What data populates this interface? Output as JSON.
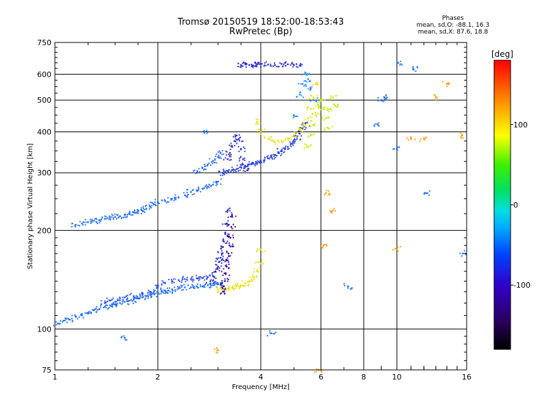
{
  "header": {
    "title": "Tromsø 20150519 18:52:00-18:53:43",
    "subtitle": "RwPretec (Bp)",
    "stats_heading": "Phases",
    "stats_o": "mean, sd,O: -88.1, 16.3",
    "stats_x": "mean, sd,X: 87.6, 18.8"
  },
  "colors": {
    "background": "#ffffff",
    "grid": "#000000",
    "purple": "#3a0090",
    "blue": "#1040e0",
    "light_blue": "#1a8cff",
    "yellow": "#f0e000",
    "yellow_green": "#b0f000",
    "orange": "#ff9a00"
  },
  "chart_data": {
    "type": "scatter",
    "title": "Tromsø 20150519 18:52:00-18:53:43",
    "subtitle": "RwPretec (Bp)",
    "xlabel": "Frequency [MHz]",
    "ylabel": "Stationary phase Virtual Height [km]",
    "x_scale": "log",
    "y_scale": "log",
    "xlim": [
      1,
      16
    ],
    "ylim": [
      75,
      750
    ],
    "x_ticks": [
      1,
      2,
      4,
      6,
      8,
      10,
      16
    ],
    "x_tick_labels": [
      "1",
      "2",
      "4",
      "6",
      "8",
      "10",
      "16"
    ],
    "y_ticks": [
      75,
      100,
      200,
      300,
      400,
      500,
      600,
      750
    ],
    "y_tick_labels": [
      "75",
      "100",
      "200",
      "300",
      "400",
      "500",
      "600",
      "750"
    ],
    "grid": true,
    "colorbar": {
      "label": "[deg]",
      "range": [
        -180,
        180
      ],
      "ticks": [
        -100,
        0,
        100
      ],
      "tick_labels": [
        "-100",
        "0",
        "100"
      ],
      "placement": "right"
    },
    "series": [
      {
        "color": "#1a6cf0",
        "x": [
          1.02,
          1.06,
          1.1,
          1.15,
          1.2,
          1.25,
          1.3,
          1.35,
          1.4,
          1.45,
          1.5,
          1.55,
          1.6,
          1.65,
          1.7,
          1.75,
          1.8,
          1.85,
          1.9,
          1.95,
          2.0,
          2.05,
          2.1,
          2.15,
          2.2,
          2.3,
          2.4,
          2.5,
          2.6,
          2.7,
          2.8,
          2.9,
          3.0,
          3.05
        ],
        "y": [
          104,
          106,
          107,
          109,
          110,
          112,
          114,
          115,
          117,
          118,
          119,
          120,
          121,
          122,
          123,
          124,
          125,
          126,
          127,
          128,
          129,
          130,
          131,
          131,
          132,
          133,
          134,
          134,
          135,
          135,
          136,
          136,
          137,
          138
        ]
      },
      {
        "color": "#2a50e8",
        "x": [
          1.4,
          1.45,
          1.5,
          1.55,
          1.6,
          1.7,
          1.8,
          1.9,
          2.0,
          2.1,
          2.2,
          2.3,
          2.4,
          2.5,
          2.6,
          2.7,
          2.8
        ],
        "y": [
          120,
          122,
          121,
          124,
          125,
          126,
          128,
          130,
          134,
          138,
          140,
          141,
          142,
          142,
          143,
          143,
          144
        ]
      },
      {
        "color": "#1a6cf0",
        "x": [
          1.15,
          1.2,
          1.25,
          1.3,
          1.35,
          1.4,
          1.45,
          1.5,
          1.55,
          1.6,
          1.65,
          1.7,
          1.75,
          1.8,
          1.85,
          1.9,
          1.95,
          2.0,
          2.1,
          2.2,
          2.3,
          2.4,
          2.5,
          2.6,
          2.7,
          2.8,
          2.9,
          3.0
        ],
        "y": [
          208,
          210,
          212,
          214,
          215,
          217,
          218,
          220,
          221,
          223,
          225,
          227,
          229,
          230,
          233,
          236,
          240,
          244,
          246,
          250,
          252,
          256,
          262,
          265,
          268,
          272,
          276,
          282
        ]
      },
      {
        "color": "#2060f0",
        "x": [
          2.6,
          2.7,
          2.8,
          2.9,
          3.0,
          3.05
        ],
        "y": [
          300,
          310,
          318,
          326,
          335,
          345
        ]
      },
      {
        "color": "#2a40d8",
        "x": [
          3.1,
          3.15,
          3.2,
          3.3,
          3.4,
          3.5,
          3.6,
          3.7,
          3.8,
          3.9,
          4.0,
          4.1,
          4.2,
          4.3,
          4.4,
          4.5,
          4.6,
          4.7,
          4.8,
          4.9,
          5.0,
          5.1,
          5.2,
          5.3,
          5.4
        ],
        "y": [
          300,
          302,
          304,
          306,
          308,
          312,
          315,
          318,
          320,
          322,
          325,
          328,
          332,
          336,
          340,
          345,
          350,
          355,
          360,
          368,
          375,
          385,
          395,
          410,
          425
        ]
      },
      {
        "color": "#2a2ac8",
        "x": [
          3.2,
          3.25,
          3.3,
          3.35,
          3.4,
          3.45,
          3.5,
          3.55,
          3.6,
          3.65
        ],
        "y": [
          330,
          345,
          360,
          375,
          390,
          380,
          355,
          330,
          315,
          305
        ]
      },
      {
        "color": "#2a2ac8",
        "x": [
          3.5,
          3.6,
          3.7,
          3.8,
          3.9,
          4.0,
          4.2,
          4.4,
          4.6,
          4.8,
          5.0,
          5.2
        ],
        "y": [
          640,
          645,
          640,
          638,
          642,
          645,
          642,
          640,
          645,
          643,
          640,
          638
        ]
      },
      {
        "color": "#e8e000",
        "x": [
          3.0,
          3.1,
          3.2,
          3.3,
          3.4,
          3.5,
          3.6,
          3.7,
          3.8,
          3.9,
          3.95,
          4.0
        ],
        "y": [
          132,
          133,
          133,
          134,
          135,
          136,
          138,
          140,
          144,
          150,
          160,
          175
        ]
      },
      {
        "color": "#2020c0",
        "x": [
          2.85,
          2.9,
          2.95,
          3.0,
          3.02,
          3.05,
          3.08,
          3.1,
          3.12,
          3.15,
          3.18,
          3.2
        ],
        "y": [
          140,
          145,
          150,
          155,
          160,
          165,
          170,
          178,
          185,
          195,
          210,
          230
        ]
      },
      {
        "color": "#3000a0",
        "x": [
          3.1,
          3.12,
          3.14,
          3.16,
          3.18,
          3.2,
          3.22,
          3.24,
          3.26,
          3.28,
          3.3
        ],
        "y": [
          130,
          135,
          140,
          148,
          155,
          162,
          170,
          180,
          190,
          205,
          220
        ]
      },
      {
        "color": "#e8e000",
        "x": [
          3.9,
          4.0,
          4.2,
          4.4,
          4.6,
          4.8,
          5.0,
          5.2,
          5.4,
          5.5,
          5.6,
          5.7,
          5.8
        ],
        "y": [
          430,
          400,
          380,
          372,
          375,
          382,
          392,
          405,
          420,
          440,
          470,
          510,
          560
        ]
      },
      {
        "color": "#c0f000",
        "x": [
          5.5,
          5.6,
          5.7,
          5.8,
          5.9,
          6.0,
          6.1,
          6.2,
          6.3,
          6.4,
          6.5,
          6.6
        ],
        "y": [
          360,
          390,
          420,
          450,
          480,
          500,
          470,
          440,
          410,
          470,
          510,
          480
        ]
      },
      {
        "color": "#1a8cff",
        "x": [
          5.0,
          5.2,
          5.3,
          5.4,
          5.5,
          5.6,
          5.7
        ],
        "y": [
          450,
          520,
          560,
          600,
          580,
          540,
          500
        ]
      },
      {
        "color": "#ff9a00",
        "x": [
          5.9,
          6.1,
          6.2,
          6.5,
          10.0,
          11.0,
          12.0,
          13.0,
          14.0,
          15.5,
          3.0
        ],
        "y": [
          75,
          180,
          260,
          230,
          175,
          380,
          380,
          510,
          560,
          390,
          86
        ]
      },
      {
        "color": "#1a6cf0",
        "x": [
          1.6,
          2.8,
          4.3,
          8.8,
          9.0,
          9.2,
          10.0,
          10.1,
          11.2,
          12.2,
          15.6,
          7.2
        ],
        "y": [
          94,
          400,
          97,
          420,
          500,
          510,
          355,
          650,
          620,
          260,
          170,
          135
        ]
      }
    ]
  }
}
